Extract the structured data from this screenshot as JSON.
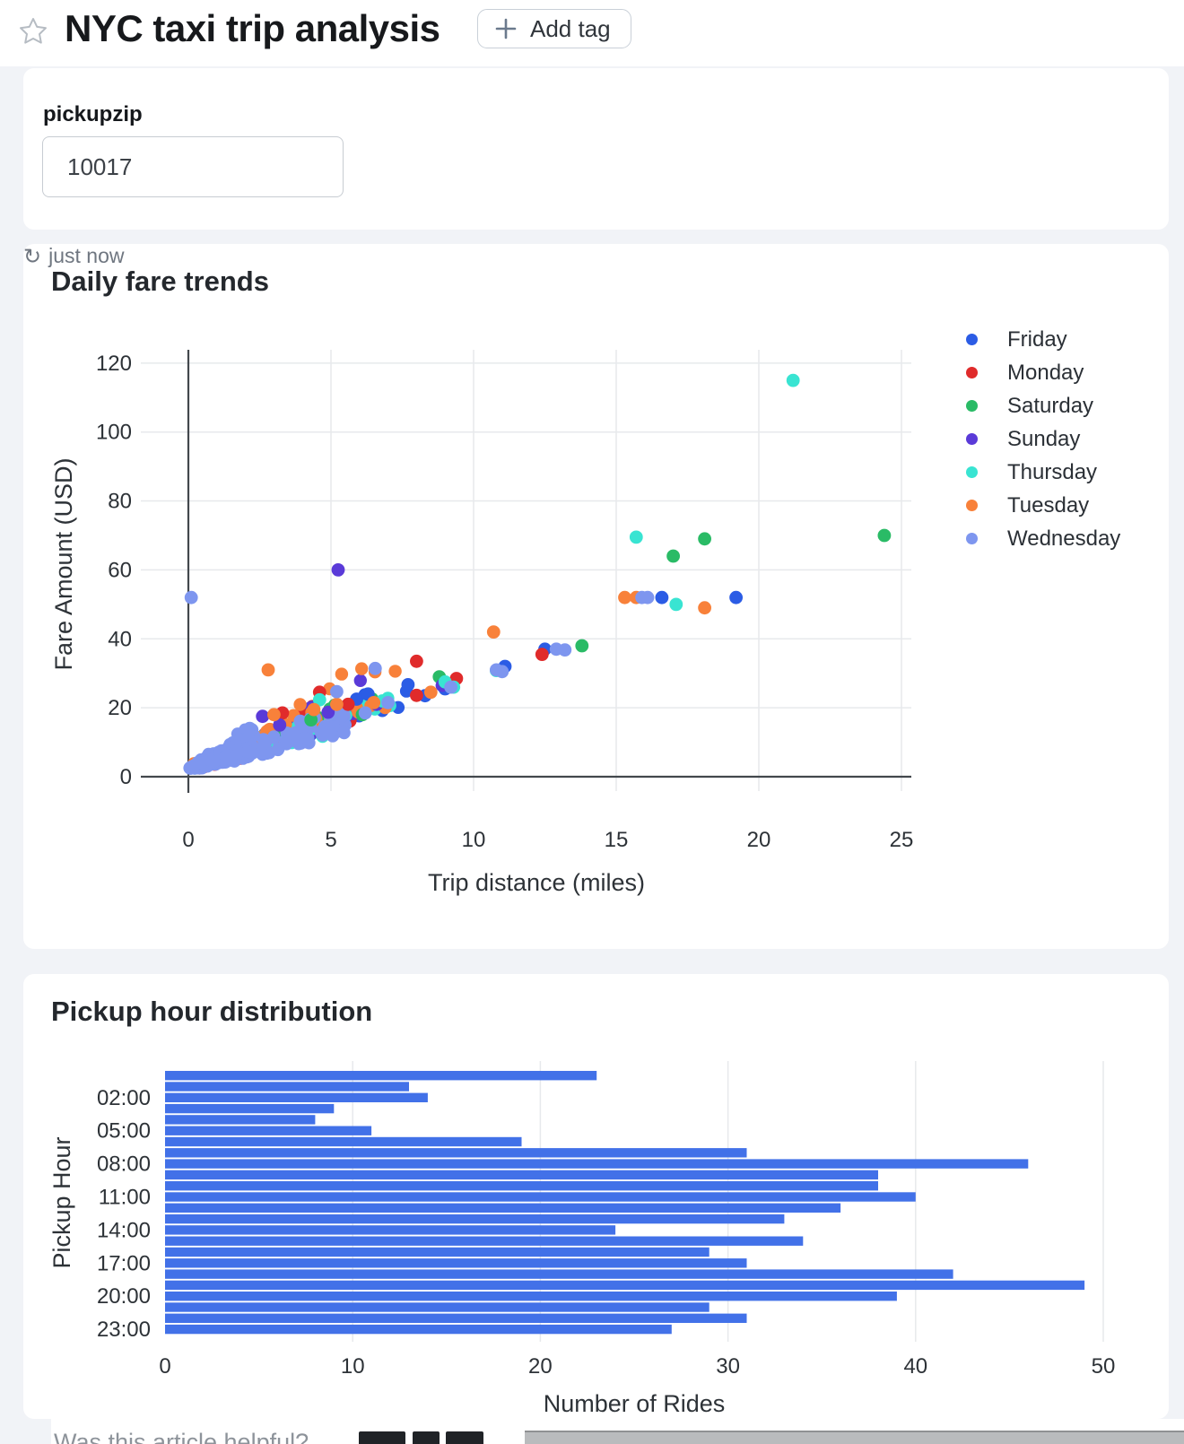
{
  "header": {
    "title": "NYC taxi trip analysis",
    "add_tag": {
      "label": "Add tag"
    }
  },
  "parameter": {
    "label": "pickupzip",
    "value": "10017"
  },
  "fare_card": {
    "title": "Daily fare trends",
    "refresh": {
      "icon": "↻",
      "label": "just now"
    }
  },
  "hour_card": {
    "title": "Pickup hour distribution"
  },
  "feedback": {
    "question": "Was this article helpful?"
  },
  "chart_data": [
    {
      "type": "scatter",
      "title": "Daily fare trends",
      "xlabel": "Trip distance (miles)",
      "ylabel": "Fare Amount (USD)",
      "x_ticks": [
        0,
        5,
        10,
        15,
        20,
        25
      ],
      "y_ticks": [
        0,
        20,
        40,
        60,
        80,
        100,
        120
      ],
      "xlim": [
        -1.7,
        25.3
      ],
      "ylim": [
        -4,
        124
      ],
      "grid": true,
      "legend_position": "right",
      "grid_color": "#e7e9ec",
      "zeroline_color": "#43484d",
      "series": [
        {
          "name": "Friday",
          "color": "#2b5ce5",
          "points": [
            [
              5.9,
              22.5
            ],
            [
              6.3,
              24
            ],
            [
              7.7,
              26.7
            ],
            [
              8.3,
              23.5
            ],
            [
              9.0,
              25.5
            ],
            [
              11.1,
              32
            ],
            [
              12.5,
              37
            ],
            [
              16.6,
              52
            ],
            [
              19.2,
              52
            ]
          ],
          "clusters": [
            {
              "count": 50,
              "x_min": 0.2,
              "x_max": 7.7,
              "skew": 1.7,
              "intercept": 2.2,
              "base_slope": 2.3,
              "slope_spread": 1.6,
              "noise": 2.8
            }
          ]
        },
        {
          "name": "Monday",
          "color": "#e02b2b",
          "points": [
            [
              3.3,
              18.5
            ],
            [
              4.6,
              24.5
            ],
            [
              5.6,
              21
            ],
            [
              8.0,
              33.5
            ],
            [
              8.0,
              23.6
            ],
            [
              9.4,
              28.5
            ],
            [
              12.4,
              35.5
            ]
          ],
          "clusters": [
            {
              "count": 45,
              "x_min": 0.2,
              "x_max": 6.8,
              "skew": 1.7,
              "intercept": 2.2,
              "base_slope": 2.3,
              "slope_spread": 1.7,
              "noise": 3.0
            }
          ]
        },
        {
          "name": "Saturday",
          "color": "#2abb66",
          "points": [
            [
              4.3,
              16.5
            ],
            [
              6.1,
              18
            ],
            [
              8.8,
              29
            ],
            [
              13.8,
              38
            ],
            [
              17.0,
              64
            ],
            [
              18.1,
              69
            ],
            [
              24.4,
              70
            ]
          ],
          "clusters": [
            {
              "count": 34,
              "x_min": 0.3,
              "x_max": 6.6,
              "skew": 1.6,
              "intercept": 2.2,
              "base_slope": 2.3,
              "slope_spread": 1.6,
              "noise": 2.6
            }
          ]
        },
        {
          "name": "Sunday",
          "color": "#5a3ad8",
          "points": [
            [
              2.6,
              17.5
            ],
            [
              3.2,
              15
            ],
            [
              4.9,
              18.7
            ],
            [
              5.25,
              60
            ],
            [
              6.6,
              21
            ],
            [
              8.9,
              26.5
            ]
          ],
          "clusters": [
            {
              "count": 44,
              "x_min": 0.2,
              "x_max": 6.2,
              "skew": 1.8,
              "intercept": 2.2,
              "base_slope": 2.3,
              "slope_spread": 1.8,
              "noise": 3.0
            }
          ]
        },
        {
          "name": "Thursday",
          "color": "#39e4d2",
          "points": [
            [
              4.6,
              22.3
            ],
            [
              6.8,
              22
            ],
            [
              9.0,
              27.5
            ],
            [
              9.3,
              26
            ],
            [
              10.8,
              30.8
            ],
            [
              15.7,
              69.5
            ],
            [
              17.1,
              50
            ],
            [
              21.2,
              115
            ]
          ],
          "clusters": [
            {
              "count": 46,
              "x_min": 0.2,
              "x_max": 7.2,
              "skew": 1.7,
              "intercept": 2.2,
              "base_slope": 2.3,
              "slope_spread": 1.7,
              "noise": 3.0
            }
          ]
        },
        {
          "name": "Tuesday",
          "color": "#f8813a",
          "points": [
            [
              2.8,
              31
            ],
            [
              3.0,
              18
            ],
            [
              4.4,
              19.5
            ],
            [
              5.2,
              21
            ],
            [
              6.5,
              21.5
            ],
            [
              8.5,
              24.5
            ],
            [
              10.7,
              42
            ],
            [
              15.3,
              52
            ],
            [
              15.7,
              52
            ],
            [
              18.1,
              49
            ]
          ],
          "clusters": [
            {
              "count": 52,
              "x_min": 0.2,
              "x_max": 7.7,
              "skew": 1.6,
              "intercept": 2.4,
              "base_slope": 2.6,
              "slope_spread": 2.4,
              "noise": 3.2
            }
          ]
        },
        {
          "name": "Wednesday",
          "color": "#7e96ef",
          "points": [
            [
              0.1,
              52
            ],
            [
              5.2,
              24.7
            ],
            [
              6.2,
              18.5
            ],
            [
              6.55,
              31.4
            ],
            [
              7.0,
              21.5
            ],
            [
              9.2,
              26
            ],
            [
              10.8,
              31
            ],
            [
              11.0,
              30.5
            ],
            [
              12.9,
              37
            ],
            [
              13.2,
              36.8
            ],
            [
              15.9,
              52
            ],
            [
              16.1,
              52
            ]
          ],
          "clusters": [
            {
              "count": 160,
              "x_min": 0.05,
              "x_max": 2.3,
              "skew": 1.4,
              "intercept": 2.1,
              "base_slope": 1.8,
              "slope_spread": 4.0,
              "noise": 1.6
            },
            {
              "count": 110,
              "x_min": 0.3,
              "x_max": 5.5,
              "skew": 1.3,
              "intercept": 2.1,
              "base_slope": 2.0,
              "slope_spread": 1.8,
              "noise": 2.6
            }
          ]
        }
      ]
    },
    {
      "type": "bar",
      "orientation": "horizontal",
      "title": "Pickup hour distribution",
      "xlabel": "Number of Rides",
      "ylabel": "Pickup Hour",
      "categories": [
        "00:00",
        "01:00",
        "02:00",
        "03:00",
        "04:00",
        "05:00",
        "06:00",
        "07:00",
        "08:00",
        "09:00",
        "10:00",
        "11:00",
        "12:00",
        "13:00",
        "14:00",
        "15:00",
        "16:00",
        "17:00",
        "18:00",
        "19:00",
        "20:00",
        "21:00",
        "22:00",
        "23:00"
      ],
      "values": [
        23,
        13,
        14,
        9,
        8,
        11,
        19,
        31,
        46,
        38,
        38,
        40,
        36,
        33,
        24,
        34,
        29,
        31,
        42,
        49,
        39,
        29,
        31,
        27
      ],
      "visible_category_ticks": [
        "02:00",
        "05:00",
        "08:00",
        "11:00",
        "14:00",
        "17:00",
        "20:00",
        "23:00"
      ],
      "x_ticks": [
        0,
        10,
        20,
        30,
        40,
        50
      ],
      "xlim": [
        0,
        50
      ],
      "bar_color": "#4271e8",
      "grid_color": "#e7e9ec"
    }
  ]
}
